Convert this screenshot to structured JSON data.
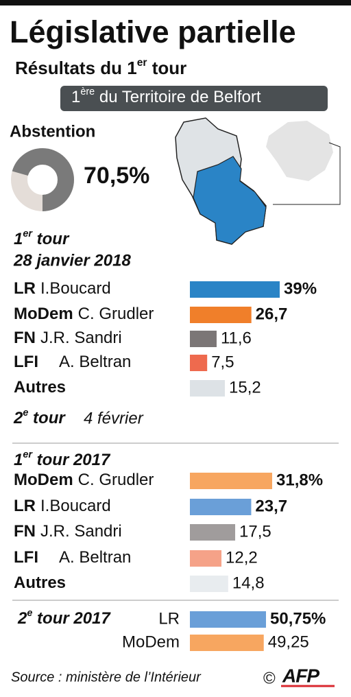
{
  "title": "Législative partielle",
  "subtitle": [
    "Résultats du 1",
    "er",
    " tour"
  ],
  "region": [
    "1",
    "ère",
    " du Territoire de Belfort"
  ],
  "source": "Source : ministère de l’Intérieur",
  "credit": "©",
  "agency": "AFP",
  "chart_data": [
    {
      "type": "donut",
      "title": "Abstention",
      "value": 70.5,
      "value_label": "70,5%",
      "color": "#7a7a7a"
    },
    {
      "type": "bar",
      "title": [
        "1",
        "er",
        " tour"
      ],
      "subtitle": "28 janvier 2018",
      "parties": [
        "LR",
        "MoDem",
        "FN",
        "LFI",
        "Autres"
      ],
      "categories": [
        "I.Boucard",
        "C. Grudler",
        "J.R. Sandri",
        "A. Beltran",
        null
      ],
      "values": [
        39,
        26.7,
        11.6,
        7.5,
        15.2
      ],
      "value_labels": [
        "39%",
        "26,7",
        "11,6",
        "7,5",
        "15,2"
      ],
      "colors": [
        "#2a84c6",
        "#f07f2a",
        "#7b7676",
        "#ee6a4e",
        "#dde2e6"
      ],
      "note": [
        "2",
        "e",
        " tour"
      ],
      "note_date": "4 février"
    },
    {
      "type": "bar",
      "title": [
        "1",
        "er",
        " tour 2017"
      ],
      "parties": [
        "MoDem",
        "LR",
        "FN",
        "LFI",
        "Autres"
      ],
      "categories": [
        "C. Grudler",
        "I.Boucard",
        "J.R. Sandri",
        "A. Beltran",
        null
      ],
      "values": [
        31.8,
        23.7,
        17.5,
        12.2,
        14.8
      ],
      "value_labels": [
        "31,8%",
        "23,7",
        "17,5",
        "12,2",
        "14,8"
      ],
      "colors": [
        "#f7a660",
        "#6a9fd8",
        "#a09c9c",
        "#f5a288",
        "#e8ecef"
      ]
    },
    {
      "type": "bar",
      "title": [
        "2",
        "e",
        " tour 2017"
      ],
      "categories": [
        "LR",
        "MoDem"
      ],
      "values": [
        50.75,
        49.25
      ],
      "value_labels": [
        "50,75%",
        "49,25"
      ],
      "colors": [
        "#6a9fd8",
        "#f7a660"
      ]
    }
  ]
}
